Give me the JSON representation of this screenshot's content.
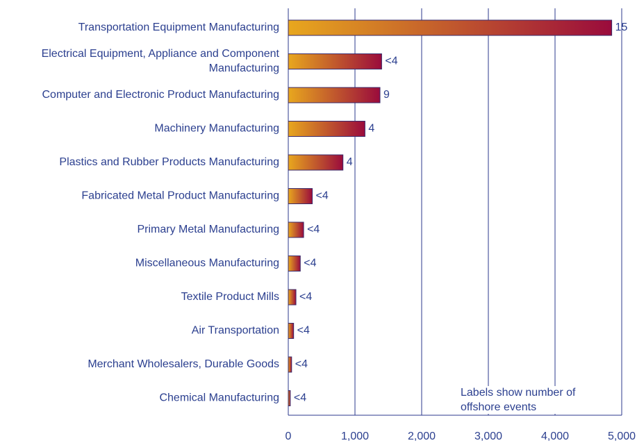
{
  "chart_data": {
    "type": "barh",
    "categories": [
      "Transportation Equipment Manufacturing",
      "Electrical Equipment, Appliance and Component Manufacturing",
      "Computer and Electronic Product Manufacturing",
      "Machinery Manufacturing",
      "Plastics and Rubber Products Manufacturing",
      "Fabricated Metal Product Manufacturing",
      "Primary Metal Manufacturing",
      "Miscellaneous Manufacturing",
      "Textile Product Mills",
      "Air Transportation",
      "Merchant Wholesalers, Durable Goods",
      "Chemical Manufacturing"
    ],
    "values": [
      4850,
      1400,
      1375,
      1150,
      820,
      360,
      230,
      180,
      115,
      80,
      50,
      30
    ],
    "event_labels": [
      "15",
      "<4",
      "9",
      "4",
      "4",
      "<4",
      "<4",
      "<4",
      "<4",
      "<4",
      "<4",
      "<4"
    ],
    "annotation": [
      "Labels show number of",
      "offshore events"
    ],
    "colors": [
      "#e8a71e",
      "#9a0b3c"
    ],
    "grid_color": "#2b3a8c",
    "xlim": [
      0,
      5000
    ],
    "xticks": [
      0,
      {
        "value": 1000,
        "label": "1,000"
      },
      {
        "value": 2000,
        "label": "2,000"
      },
      {
        "value": 3000,
        "label": "3,000"
      },
      {
        "value": 4000,
        "label": "4,000"
      },
      {
        "value": 5000,
        "label": "5,000"
      }
    ],
    "grid": true
  }
}
